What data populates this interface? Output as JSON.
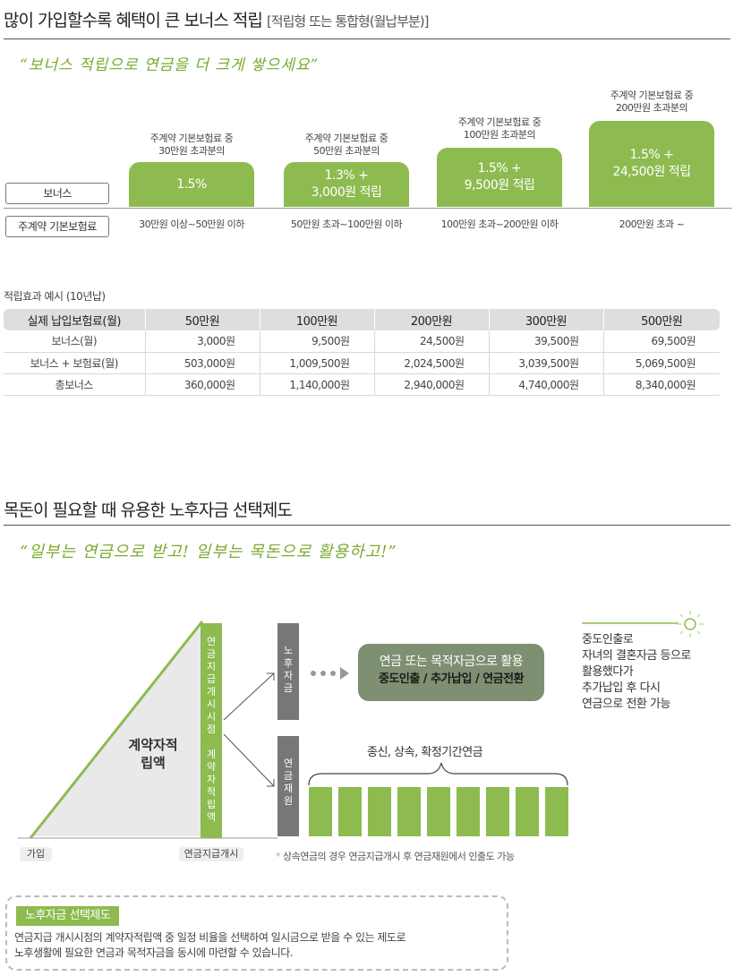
{
  "bonus_section": {
    "title": "많이 가입할수록 혜택이 큰 보너스 적립",
    "subtitle": "[적립형 또는 통합형(월납부분)]",
    "quote": "“보너스 적립으로 연금을 더 크게 쌓으세요”",
    "row_labels": {
      "bonus": "보너스",
      "premium": "주계약 기본보험료"
    },
    "tiers": [
      {
        "caption_line1": "주계약 기본보험료 중",
        "caption_line2": "30만원 초과분의",
        "box_line1": "1.5%",
        "box_line2": "",
        "range": "30만원 이상~50만원 이하"
      },
      {
        "caption_line1": "주계약 기본보험료 중",
        "caption_line2": "50만원 초과분의",
        "box_line1": "1.3% +",
        "box_line2": "3,000원 적립",
        "range": "50만원 초과~100만원 이하"
      },
      {
        "caption_line1": "주계약 기본보험료 중",
        "caption_line2": "100만원 초과분의",
        "box_line1": "1.5% +",
        "box_line2": "9,500원 적립",
        "range": "100만원 초과~200만원 이하"
      },
      {
        "caption_line1": "주계약 기본보험료 중",
        "caption_line2": "200만원 초과분의",
        "box_line1": "1.5% +",
        "box_line2": "24,500원 적립",
        "range": "200만원 초과 ~"
      }
    ]
  },
  "table": {
    "title": "적립효과 예시 (10년납)",
    "headers": [
      "실제 납입보험료(월)",
      "50만원",
      "100만원",
      "200만원",
      "300만원",
      "500만원"
    ],
    "rows": [
      [
        "보너스(월)",
        "3,000원",
        "9,500원",
        "24,500원",
        "39,500원",
        "69,500원"
      ],
      [
        "보너스 + 보험료(월)",
        "503,000원",
        "1,009,500원",
        "2,024,500원",
        "3,039,500원",
        "5,069,500원"
      ],
      [
        "총보너스",
        "360,000원",
        "1,140,000원",
        "2,940,000원",
        "4,740,000원",
        "8,340,000원"
      ]
    ]
  },
  "pension_section": {
    "title": "목돈이 필요할 때 유용한 노후자금 선택제도",
    "quote": "“일부는 연금으로 받고! 일부는 목돈으로 활용하고!”",
    "triangle_label_line1": "계약자적",
    "triangle_label_line2": "립액",
    "vertical_bar_text": "연금지급개시시점 계약자적립액",
    "label_join": "가입",
    "label_start": "연금지급개시",
    "box_fund_text": "노후자금",
    "box_annuity_text": "연금재원",
    "pill_main": "연금 또는 목적자금으로 활용",
    "pill_sub": "중도인출 / 추가납입 / 연금전환",
    "annuity_types": "종신, 상속, 확정기간연금",
    "footnote_mark": "*",
    "footnote": "상속연금의 경우 연금지급개시 후 연금재원에서 인출도 가능",
    "side_note": [
      "중도인출로",
      "자녀의 결혼자금 등으로",
      "활용했다가",
      "추가납입 후 다시",
      "연금으로 전환 가능"
    ],
    "info_tag": "노후자금 선택제도",
    "info_desc_line1": "연금지급 개시시점의 계약자적립액 중 일정 비율을 선택하여 일시금으로 받을 수 있는 제도로",
    "info_desc_line2": "노후생활에 필요한 연금과 목적자금을 동시에 마련할 수 있습니다."
  },
  "colors": {
    "accent_green": "#8dbb50",
    "quote_green": "#7aaa2f",
    "gray_box": "#777777",
    "pill_gray_green": "#7f8f72"
  }
}
